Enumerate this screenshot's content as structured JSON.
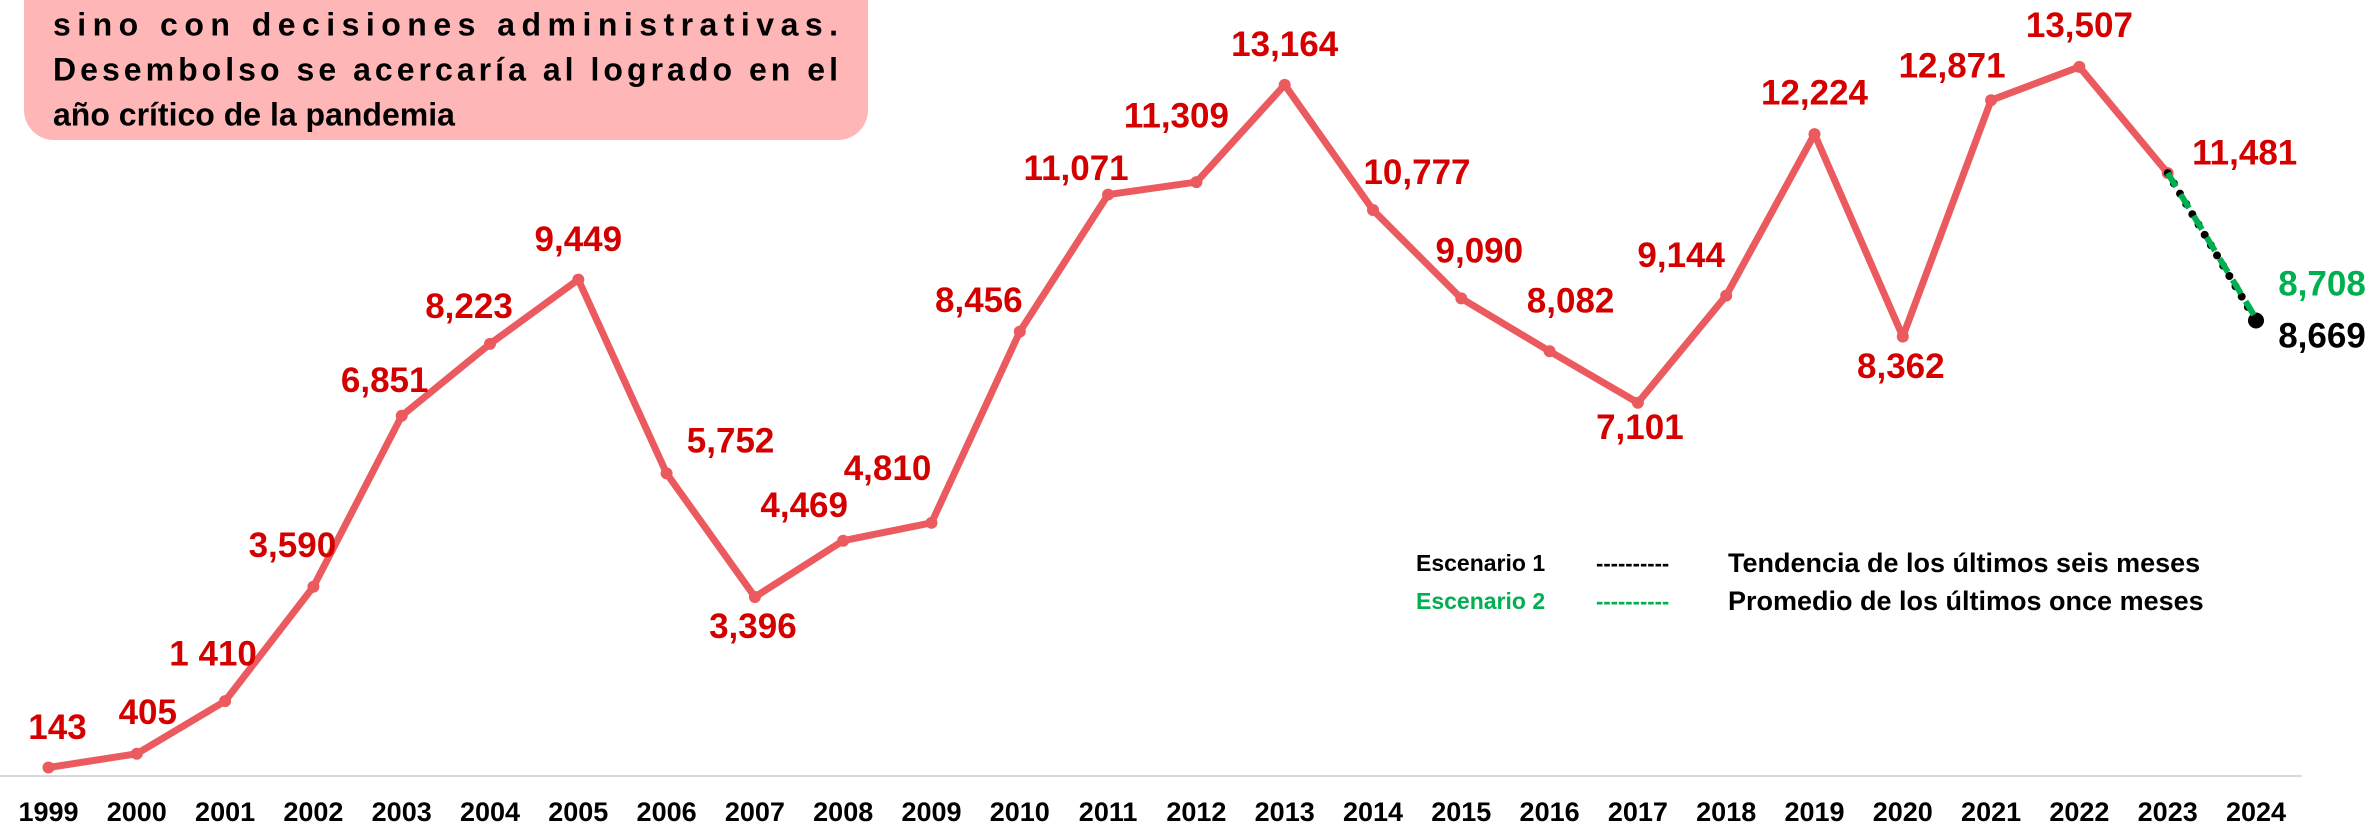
{
  "chart_data": {
    "type": "line",
    "annotation": [
      "sino con decisiones administrativas.",
      "Desembolso se acercaría al logrado en el",
      "año crítico de la pandemia"
    ],
    "categories": [
      "1999",
      "2000",
      "2001",
      "2002",
      "2003",
      "2004",
      "2005",
      "2006",
      "2007",
      "2008",
      "2009",
      "2010",
      "2011",
      "2012",
      "2013",
      "2014",
      "2015",
      "2016",
      "2017",
      "2018",
      "2019",
      "2020",
      "2021",
      "2022",
      "2023",
      "2024"
    ],
    "ylim": [
      0,
      14000
    ],
    "series": [
      {
        "color": "#eb5a5e",
        "label_color": "#d40000",
        "values": [
          143,
          405,
          1410,
          3590,
          6851,
          8223,
          9449,
          5752,
          3396,
          4469,
          4810,
          8456,
          11071,
          11309,
          13164,
          10777,
          9090,
          8082,
          7101,
          9144,
          12224,
          8362,
          12871,
          13507,
          11481,
          null
        ],
        "value_labels": [
          "143",
          "405",
          "1 410",
          "3,590",
          "6,851",
          "8,223",
          "9,449",
          "5,752",
          "3,396",
          "4,469",
          "4,810",
          "8,456",
          "11,071",
          "11,309",
          "13,164",
          "10,777",
          "9,090",
          "8,082",
          "7,101",
          "9,144",
          "12,224",
          "8,362",
          "12,871",
          "13,507",
          "11,481",
          null
        ]
      },
      {
        "name": "Escenario 1",
        "color": "#000000",
        "dash": "dotted",
        "legend_line": "----------",
        "description": "Tendencia de los últimos seis meses",
        "values": [
          null,
          null,
          null,
          null,
          null,
          null,
          null,
          null,
          null,
          null,
          null,
          null,
          null,
          null,
          null,
          null,
          null,
          null,
          null,
          null,
          null,
          null,
          null,
          null,
          11481,
          8669
        ],
        "value_labels": [
          null,
          null,
          null,
          null,
          null,
          null,
          null,
          null,
          null,
          null,
          null,
          null,
          null,
          null,
          null,
          null,
          null,
          null,
          null,
          null,
          null,
          null,
          null,
          null,
          null,
          "8,669"
        ]
      },
      {
        "name": "Escenario 2",
        "color": "#00b050",
        "dash": "dashed",
        "legend_line": "----------",
        "description": "Promedio de los últimos once meses",
        "values": [
          null,
          null,
          null,
          null,
          null,
          null,
          null,
          null,
          null,
          null,
          null,
          null,
          null,
          null,
          null,
          null,
          null,
          null,
          null,
          null,
          null,
          null,
          null,
          null,
          11481,
          8708
        ],
        "value_labels": [
          null,
          null,
          null,
          null,
          null,
          null,
          null,
          null,
          null,
          null,
          null,
          null,
          null,
          null,
          null,
          null,
          null,
          null,
          null,
          null,
          null,
          null,
          null,
          null,
          null,
          "8,708"
        ]
      }
    ]
  }
}
